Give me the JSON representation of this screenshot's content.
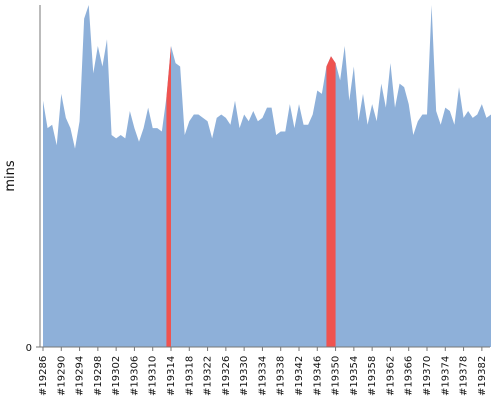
{
  "chart_data": {
    "type": "area",
    "title": "",
    "xlabel": "",
    "ylabel": "mins",
    "y_tick_labels": [
      "0"
    ],
    "ylim": [
      0,
      100
    ],
    "grid": false,
    "colors": {
      "series": "#8eb0d9",
      "highlight": "#ef5350",
      "axis": "#777777",
      "text": "#111111",
      "background": "#ffffff"
    },
    "x_tick_labels": [
      "#19286",
      "#19290",
      "#19294",
      "#19298",
      "#19302",
      "#19306",
      "#19310",
      "#19314",
      "#19318",
      "#19322",
      "#19326",
      "#19330",
      "#19334",
      "#19338",
      "#19342",
      "#19346",
      "#19350",
      "#19354",
      "#19358",
      "#19362",
      "#19366",
      "#19370",
      "#19374",
      "#19378",
      "#19382"
    ],
    "x_start": 19286,
    "x_end": 19384,
    "series": [
      {
        "values": [
          72,
          64,
          65,
          59,
          74,
          67,
          64,
          58,
          66,
          96,
          100,
          80,
          88,
          82,
          90,
          62,
          61,
          62,
          61,
          69,
          64,
          60,
          64,
          70,
          64,
          64,
          63,
          73,
          88,
          83,
          82,
          62,
          66,
          68,
          68,
          67,
          66,
          61,
          67,
          68,
          67,
          65,
          72,
          64,
          68,
          66,
          69,
          66,
          67,
          70,
          70,
          62,
          63,
          63,
          71,
          64,
          71,
          65,
          65,
          68,
          75,
          74,
          82,
          85,
          83,
          78,
          88,
          72,
          82,
          66,
          74,
          65,
          71,
          66,
          77,
          70,
          83,
          70,
          77,
          76,
          71,
          62,
          66,
          68,
          68,
          100,
          69,
          65,
          70,
          69,
          65,
          76,
          67,
          69,
          67,
          68,
          71,
          67,
          68
        ]
      }
    ],
    "highlight_ranges": [
      [
        19313,
        19314
      ],
      [
        19348,
        19350
      ]
    ]
  }
}
